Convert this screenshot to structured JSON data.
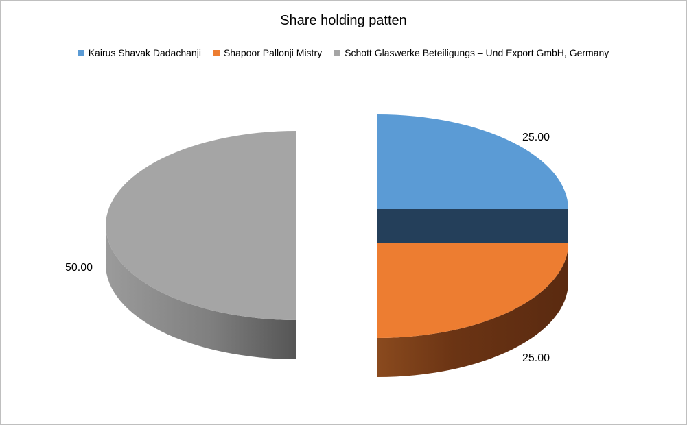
{
  "chart_data": {
    "type": "pie",
    "title": "Share holding patten",
    "categories": [
      "Kairus Shavak Dadachanji",
      "Shapoor Pallonji Mistry",
      "Schott Glaswerke Beteiligungs – Und Export GmbH,  Germany"
    ],
    "values": [
      25.0,
      25.0,
      50.0
    ],
    "value_labels": [
      "25.00",
      "25.00",
      "50.00"
    ],
    "colors": [
      "#5b9bd5",
      "#ed7d31",
      "#a5a5a5"
    ],
    "legend_position": "top",
    "style": "3d-exploded"
  }
}
